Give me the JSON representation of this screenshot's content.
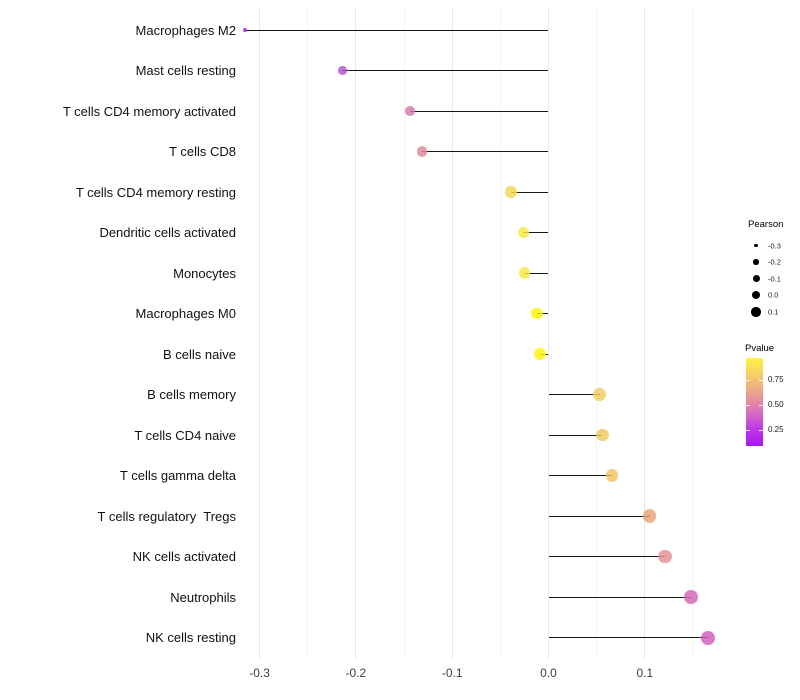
{
  "chart_data": {
    "type": "lollipop",
    "title": "",
    "xlabel": "",
    "ylabel": "",
    "x_ticks": {
      "values": [
        -0.3,
        -0.2,
        -0.1,
        0,
        0.1
      ],
      "labels": [
        "-0.3",
        "-0.2",
        "-0.1",
        "0.0",
        "0.1"
      ]
    },
    "x_minor_ticks": [
      -0.25,
      -0.15,
      -0.05,
      0.05,
      0.15
    ],
    "xlim": [
      -0.345,
      0.19
    ],
    "baseline": 0,
    "grid": "vertical, light gray, on white background",
    "size_encoding": "Pearson correlation (larger dot = higher value)",
    "color_encoding": "Pvalue (purple = low, yellow = high)",
    "points": [
      {
        "label": "Macrophages M2",
        "pearson": -0.315,
        "color": "#a22cdc"
      },
      {
        "label": "Mast cells resting",
        "pearson": -0.214,
        "color": "#b455cc"
      },
      {
        "label": "T cells CD4 memory activated",
        "pearson": -0.144,
        "color": "#d279ab"
      },
      {
        "label": "T cells CD8",
        "pearson": -0.131,
        "color": "#df8699"
      },
      {
        "label": "T cells CD4 memory resting",
        "pearson": -0.039,
        "color": "#f3d94a"
      },
      {
        "label": "Dendritic cells activated",
        "pearson": -0.026,
        "color": "#f8e942"
      },
      {
        "label": "Monocytes",
        "pearson": -0.025,
        "color": "#f8ea40"
      },
      {
        "label": "Macrophages M0",
        "pearson": -0.012,
        "color": "#fcf306"
      },
      {
        "label": "B cells naive",
        "pearson": -0.009,
        "color": "#fcf306"
      },
      {
        "label": "B cells memory",
        "pearson": 0.053,
        "color": "#f2cb5f"
      },
      {
        "label": "T cells CD4 naive",
        "pearson": 0.056,
        "color": "#f1c85e"
      },
      {
        "label": "T cells gamma delta",
        "pearson": 0.066,
        "color": "#f0c45c"
      },
      {
        "label": "T cells regulatory  Tregs",
        "pearson": 0.105,
        "color": "#eaa478"
      },
      {
        "label": "NK cells activated",
        "pearson": 0.121,
        "color": "#e28f92"
      },
      {
        "label": "Neutrophils",
        "pearson": 0.148,
        "color": "#d263b2"
      },
      {
        "label": "NK cells resting",
        "pearson": 0.166,
        "color": "#cf5ac0"
      }
    ]
  },
  "legend_pearson": {
    "title": "Pearson",
    "entries": [
      {
        "label": "-0.3",
        "value": -0.3
      },
      {
        "label": "-0.2",
        "value": -0.2
      },
      {
        "label": "-0.1",
        "value": -0.1
      },
      {
        "label": "0.0",
        "value": 0.0
      },
      {
        "label": "0.1",
        "value": 0.1
      }
    ]
  },
  "legend_pvalue": {
    "title": "Pvalue",
    "tick_labels": [
      "0.75",
      "0.50",
      "0.25"
    ],
    "gradient_top_to_bottom": [
      "#fbf444",
      "#f5ce68",
      "#e9a28e",
      "#d973bc",
      "#bc3be6",
      "#a816f0"
    ]
  },
  "colors": {
    "background": "#ffffff",
    "segment": "#181818",
    "grid_major": "#e7e7e7",
    "grid_minor": "#f2f2f2",
    "axis_text": "#3c3c3c"
  }
}
